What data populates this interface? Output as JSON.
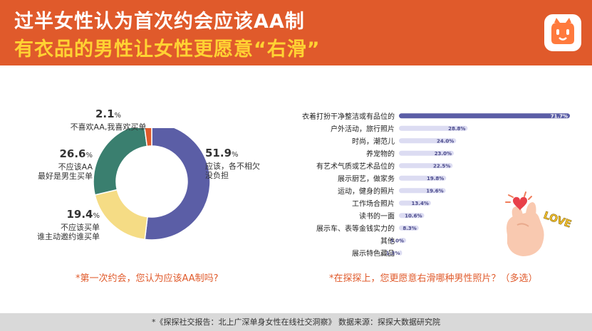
{
  "header": {
    "title_line1": "过半女性认为首次约会应该AA制",
    "title_line2": "有衣品的男性让女性更愿意“右滑”"
  },
  "icons": {
    "logo": "tantan-face-logo",
    "illustration": "hand-heart-love-illustration"
  },
  "illustration_text": "LOVE",
  "colors": {
    "accent": "#e05a2b",
    "title_highlight": "#ffd233",
    "slice_aa_split": "#5b5ea6",
    "slice_he_pays": "#3a7f6f",
    "slice_who_invites_pays": "#f5dc85",
    "slice_i_pay": "#e05a2b",
    "bar_top": "#5b5ea6",
    "bar_other": "#dcdcf2"
  },
  "chart_data": [
    {
      "type": "pie",
      "donut": true,
      "slices": [
        {
          "percent": "51.9",
          "value": 51.9,
          "label_lines": [
            "应该，各不相欠",
            "没负担"
          ],
          "color_key": "slice_aa_split"
        },
        {
          "percent": "19.4",
          "value": 19.4,
          "label_lines": [
            "不应该买单",
            "谁主动邀约谁买单"
          ],
          "color_key": "slice_who_invites_pays"
        },
        {
          "percent": "26.6",
          "value": 26.6,
          "label_lines": [
            "不应该AA",
            "最好是男生买单"
          ],
          "color_key": "slice_he_pays"
        },
        {
          "percent": "2.1",
          "value": 2.1,
          "label_lines": [
            "不喜欢AA,我喜欢买单"
          ],
          "color_key": "slice_i_pay"
        }
      ],
      "unit": "%",
      "caption": "*第一次约会，您认为应该AA制吗?"
    },
    {
      "type": "bar",
      "orientation": "horizontal",
      "categories": [
        "衣着打扮干净整洁或有品位的",
        "户外活动，旅行照片",
        "时尚，潮范儿",
        "养宠物的",
        "有艺术气质或艺术品位的",
        "展示厨艺，做家务",
        "运动，健身的照片",
        "工作场合照片",
        "读书的一面",
        "展示车、表等金钱实力的",
        "其他",
        "展示特色藏品"
      ],
      "values": [
        71.7,
        28.8,
        24.0,
        23.0,
        22.5,
        19.8,
        19.6,
        13.4,
        10.6,
        8.3,
        3.0,
        1.3
      ],
      "value_labels": [
        "71.7%",
        "28.8%",
        "24.0%",
        "23.0%",
        "22.5%",
        "19.8%",
        "19.6%",
        "13.4%",
        "10.6%",
        "8.3%",
        "3.0%",
        "1.3%"
      ],
      "caption": "*在探探上，您更愿意右滑哪种男性照片？（多选）"
    }
  ],
  "footer": "*《探探社交报告：北上广深单身女性在线社交洞察》   数据来源：探探大数据研究院"
}
